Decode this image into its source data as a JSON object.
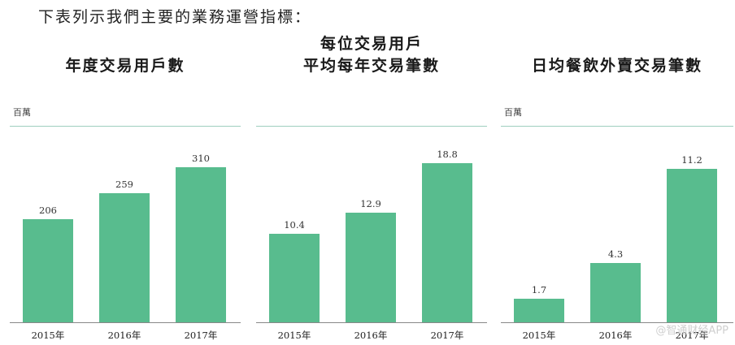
{
  "intro": "下表列示我們主要的業務運營指標：",
  "watermark": "@智通财经APP",
  "chart_data": [
    {
      "type": "bar",
      "title": "年度交易用戶數",
      "unit": "百萬",
      "categories": [
        "2015年",
        "2016年",
        "2017年"
      ],
      "values": [
        206,
        259,
        310
      ],
      "value_labels": [
        "206",
        "259",
        "310"
      ],
      "ylim": [
        0,
        390
      ],
      "color": "#58bc8e"
    },
    {
      "type": "bar",
      "title_lines": [
        "每位交易用戶",
        "平均每年交易筆數"
      ],
      "categories": [
        "2015年",
        "2016年",
        "2017年"
      ],
      "values": [
        10.4,
        12.9,
        18.8
      ],
      "value_labels": [
        "10.4",
        "12.9",
        "18.8"
      ],
      "ylim": [
        0,
        23
      ],
      "color": "#58bc8e"
    },
    {
      "type": "bar",
      "title": "日均餐飲外賣交易筆數",
      "unit": "百萬",
      "categories": [
        "2015年",
        "2016年",
        "2017年"
      ],
      "values": [
        1.7,
        4.3,
        11.2
      ],
      "value_labels": [
        "1.7",
        "4.3",
        "11.2"
      ],
      "ylim": [
        0,
        14.2
      ],
      "color": "#58bc8e"
    }
  ]
}
